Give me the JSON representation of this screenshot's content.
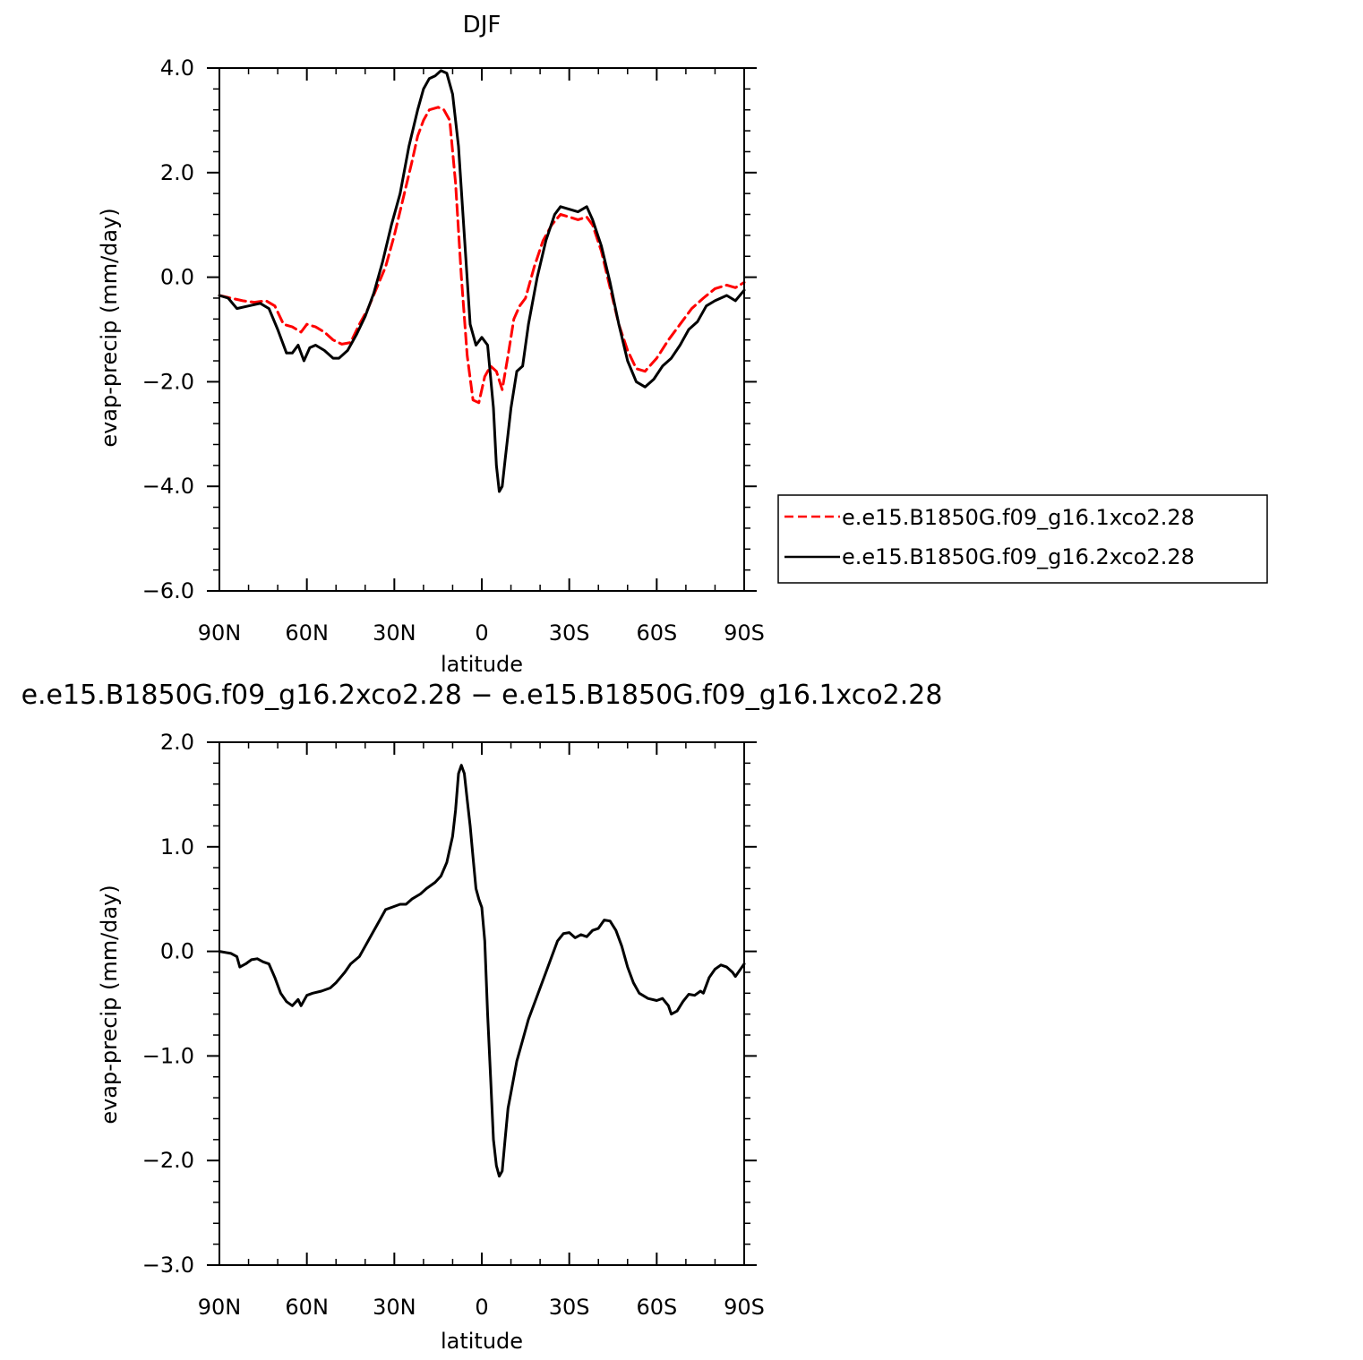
{
  "colors": {
    "axis": "#000000",
    "series_red": "#ff0000",
    "series_black": "#000000",
    "background": "#ffffff"
  },
  "chart_data": [
    {
      "type": "line",
      "title": "DJF",
      "xlabel": "latitude",
      "ylabel": "evap-precip (mm/day)",
      "xlim": [
        -90,
        90
      ],
      "xticks": [
        -90,
        -60,
        -30,
        0,
        30,
        60,
        90
      ],
      "xtick_labels": [
        "90N",
        "60N",
        "30N",
        "0",
        "30S",
        "60S",
        "90S"
      ],
      "ylim": [
        -6,
        4
      ],
      "yticks": [
        -6,
        -4,
        -2,
        0,
        2,
        4
      ],
      "ytick_labels": [
        "−6.0",
        "−4.0",
        "−2.0",
        "0.0",
        "2.0",
        "4.0"
      ],
      "grid": false,
      "legend_position": "right",
      "series": [
        {
          "name": "e.e15.B1850G.f09_g16.1xco2.28",
          "style": "dashed",
          "color": "#ff0000",
          "points": [
            [
              -90,
              -0.35
            ],
            [
              -86,
              -0.4
            ],
            [
              -82,
              -0.45
            ],
            [
              -78,
              -0.48
            ],
            [
              -74,
              -0.45
            ],
            [
              -71,
              -0.55
            ],
            [
              -68,
              -0.9
            ],
            [
              -65,
              -0.95
            ],
            [
              -62,
              -1.05
            ],
            [
              -60,
              -0.9
            ],
            [
              -57,
              -0.95
            ],
            [
              -54,
              -1.05
            ],
            [
              -51,
              -1.2
            ],
            [
              -48,
              -1.28
            ],
            [
              -45,
              -1.25
            ],
            [
              -42,
              -0.9
            ],
            [
              -39,
              -0.6
            ],
            [
              -36,
              -0.2
            ],
            [
              -33,
              0.2
            ],
            [
              -30,
              0.8
            ],
            [
              -27,
              1.5
            ],
            [
              -24,
              2.2
            ],
            [
              -22,
              2.7
            ],
            [
              -20,
              3.0
            ],
            [
              -18,
              3.2
            ],
            [
              -15,
              3.25
            ],
            [
              -13,
              3.2
            ],
            [
              -11,
              3.0
            ],
            [
              -9,
              1.8
            ],
            [
              -7,
              0.0
            ],
            [
              -5,
              -1.5
            ],
            [
              -3,
              -2.35
            ],
            [
              -1,
              -2.4
            ],
            [
              1,
              -1.9
            ],
            [
              3,
              -1.7
            ],
            [
              5,
              -1.8
            ],
            [
              7,
              -2.15
            ],
            [
              9,
              -1.5
            ],
            [
              11,
              -0.8
            ],
            [
              13,
              -0.55
            ],
            [
              15,
              -0.4
            ],
            [
              18,
              0.2
            ],
            [
              21,
              0.7
            ],
            [
              24,
              1.0
            ],
            [
              27,
              1.2
            ],
            [
              30,
              1.15
            ],
            [
              33,
              1.1
            ],
            [
              36,
              1.15
            ],
            [
              38,
              1.0
            ],
            [
              41,
              0.5
            ],
            [
              44,
              -0.2
            ],
            [
              47,
              -0.9
            ],
            [
              50,
              -1.4
            ],
            [
              53,
              -1.75
            ],
            [
              56,
              -1.8
            ],
            [
              60,
              -1.55
            ],
            [
              64,
              -1.2
            ],
            [
              68,
              -0.9
            ],
            [
              72,
              -0.6
            ],
            [
              76,
              -0.4
            ],
            [
              80,
              -0.22
            ],
            [
              84,
              -0.15
            ],
            [
              87,
              -0.2
            ],
            [
              90,
              -0.1
            ]
          ]
        },
        {
          "name": "e.e15.B1850G.f09_g16.2xco2.28",
          "style": "solid",
          "color": "#000000",
          "points": [
            [
              -90,
              -0.35
            ],
            [
              -87,
              -0.4
            ],
            [
              -84,
              -0.6
            ],
            [
              -80,
              -0.55
            ],
            [
              -76,
              -0.5
            ],
            [
              -73,
              -0.6
            ],
            [
              -70,
              -1.0
            ],
            [
              -67,
              -1.45
            ],
            [
              -65,
              -1.45
            ],
            [
              -63,
              -1.3
            ],
            [
              -61,
              -1.6
            ],
            [
              -59,
              -1.35
            ],
            [
              -57,
              -1.3
            ],
            [
              -54,
              -1.4
            ],
            [
              -51,
              -1.55
            ],
            [
              -49,
              -1.55
            ],
            [
              -46,
              -1.4
            ],
            [
              -43,
              -1.1
            ],
            [
              -40,
              -0.75
            ],
            [
              -37,
              -0.3
            ],
            [
              -34,
              0.3
            ],
            [
              -31,
              1.0
            ],
            [
              -28,
              1.6
            ],
            [
              -25,
              2.5
            ],
            [
              -22,
              3.2
            ],
            [
              -20,
              3.6
            ],
            [
              -18,
              3.8
            ],
            [
              -16,
              3.85
            ],
            [
              -14,
              3.95
            ],
            [
              -12,
              3.9
            ],
            [
              -10,
              3.5
            ],
            [
              -8,
              2.5
            ],
            [
              -6,
              0.8
            ],
            [
              -4,
              -0.9
            ],
            [
              -2,
              -1.3
            ],
            [
              0,
              -1.15
            ],
            [
              2,
              -1.3
            ],
            [
              4,
              -2.5
            ],
            [
              5,
              -3.6
            ],
            [
              6,
              -4.1
            ],
            [
              7,
              -4.0
            ],
            [
              8,
              -3.5
            ],
            [
              10,
              -2.5
            ],
            [
              12,
              -1.8
            ],
            [
              14,
              -1.7
            ],
            [
              16,
              -0.9
            ],
            [
              19,
              0.0
            ],
            [
              22,
              0.7
            ],
            [
              25,
              1.2
            ],
            [
              27,
              1.35
            ],
            [
              30,
              1.3
            ],
            [
              33,
              1.25
            ],
            [
              36,
              1.35
            ],
            [
              38,
              1.1
            ],
            [
              41,
              0.6
            ],
            [
              44,
              -0.1
            ],
            [
              47,
              -0.9
            ],
            [
              50,
              -1.6
            ],
            [
              53,
              -2.0
            ],
            [
              56,
              -2.1
            ],
            [
              59,
              -1.95
            ],
            [
              62,
              -1.7
            ],
            [
              65,
              -1.55
            ],
            [
              68,
              -1.3
            ],
            [
              71,
              -1.0
            ],
            [
              74,
              -0.85
            ],
            [
              77,
              -0.55
            ],
            [
              80,
              -0.45
            ],
            [
              84,
              -0.35
            ],
            [
              87,
              -0.45
            ],
            [
              90,
              -0.25
            ]
          ]
        }
      ]
    },
    {
      "type": "line",
      "title": "e.e15.B1850G.f09_g16.2xco2.28 − e.e15.B1850G.f09_g16.1xco2.28",
      "xlabel": "latitude",
      "ylabel": "evap-precip (mm/day)",
      "xlim": [
        -90,
        90
      ],
      "xticks": [
        -90,
        -60,
        -30,
        0,
        30,
        60,
        90
      ],
      "xtick_labels": [
        "90N",
        "60N",
        "30N",
        "0",
        "30S",
        "60S",
        "90S"
      ],
      "ylim": [
        -3,
        2
      ],
      "yticks": [
        -3,
        -2,
        -1,
        0,
        1,
        2
      ],
      "ytick_labels": [
        "−3.0",
        "−2.0",
        "−1.0",
        "0.0",
        "1.0",
        "2.0"
      ],
      "grid": false,
      "series": [
        {
          "style": "solid",
          "color": "#000000",
          "points": [
            [
              -90,
              0.0
            ],
            [
              -86,
              -0.02
            ],
            [
              -84,
              -0.05
            ],
            [
              -83,
              -0.15
            ],
            [
              -81,
              -0.12
            ],
            [
              -79,
              -0.08
            ],
            [
              -77,
              -0.07
            ],
            [
              -75,
              -0.1
            ],
            [
              -73,
              -0.12
            ],
            [
              -71,
              -0.25
            ],
            [
              -69,
              -0.4
            ],
            [
              -67,
              -0.48
            ],
            [
              -65,
              -0.52
            ],
            [
              -63,
              -0.46
            ],
            [
              -62,
              -0.52
            ],
            [
              -60,
              -0.42
            ],
            [
              -58,
              -0.4
            ],
            [
              -55,
              -0.38
            ],
            [
              -52,
              -0.35
            ],
            [
              -50,
              -0.3
            ],
            [
              -47,
              -0.2
            ],
            [
              -45,
              -0.12
            ],
            [
              -42,
              -0.05
            ],
            [
              -40,
              0.05
            ],
            [
              -38,
              0.15
            ],
            [
              -35,
              0.3
            ],
            [
              -33,
              0.4
            ],
            [
              -30,
              0.43
            ],
            [
              -28,
              0.45
            ],
            [
              -26,
              0.45
            ],
            [
              -24,
              0.5
            ],
            [
              -21,
              0.55
            ],
            [
              -19,
              0.6
            ],
            [
              -16,
              0.66
            ],
            [
              -14,
              0.72
            ],
            [
              -12,
              0.85
            ],
            [
              -10,
              1.1
            ],
            [
              -9,
              1.35
            ],
            [
              -8,
              1.7
            ],
            [
              -7,
              1.78
            ],
            [
              -6,
              1.7
            ],
            [
              -5,
              1.45
            ],
            [
              -4,
              1.2
            ],
            [
              -3,
              0.9
            ],
            [
              -2,
              0.6
            ],
            [
              -1,
              0.5
            ],
            [
              0,
              0.42
            ],
            [
              1,
              0.1
            ],
            [
              2,
              -0.6
            ],
            [
              3,
              -1.2
            ],
            [
              4,
              -1.8
            ],
            [
              5,
              -2.05
            ],
            [
              6,
              -2.15
            ],
            [
              7,
              -2.1
            ],
            [
              8,
              -1.8
            ],
            [
              9,
              -1.5
            ],
            [
              10,
              -1.35
            ],
            [
              12,
              -1.05
            ],
            [
              14,
              -0.85
            ],
            [
              16,
              -0.65
            ],
            [
              18,
              -0.5
            ],
            [
              20,
              -0.35
            ],
            [
              22,
              -0.2
            ],
            [
              24,
              -0.05
            ],
            [
              26,
              0.1
            ],
            [
              28,
              0.17
            ],
            [
              30,
              0.18
            ],
            [
              32,
              0.13
            ],
            [
              34,
              0.16
            ],
            [
              36,
              0.14
            ],
            [
              38,
              0.2
            ],
            [
              40,
              0.22
            ],
            [
              42,
              0.3
            ],
            [
              44,
              0.29
            ],
            [
              46,
              0.2
            ],
            [
              48,
              0.05
            ],
            [
              50,
              -0.15
            ],
            [
              52,
              -0.3
            ],
            [
              54,
              -0.4
            ],
            [
              57,
              -0.45
            ],
            [
              60,
              -0.47
            ],
            [
              62,
              -0.45
            ],
            [
              64,
              -0.52
            ],
            [
              65,
              -0.6
            ],
            [
              67,
              -0.57
            ],
            [
              69,
              -0.48
            ],
            [
              71,
              -0.41
            ],
            [
              73,
              -0.42
            ],
            [
              75,
              -0.38
            ],
            [
              76,
              -0.4
            ],
            [
              78,
              -0.25
            ],
            [
              80,
              -0.17
            ],
            [
              82,
              -0.13
            ],
            [
              84,
              -0.15
            ],
            [
              86,
              -0.2
            ],
            [
              87,
              -0.24
            ],
            [
              89,
              -0.16
            ],
            [
              90,
              -0.12
            ]
          ]
        }
      ]
    }
  ]
}
